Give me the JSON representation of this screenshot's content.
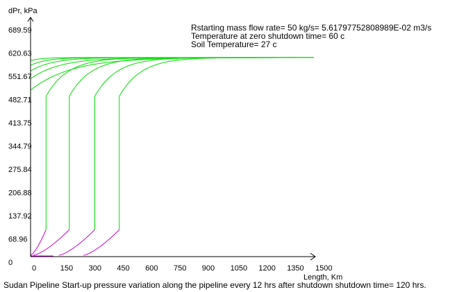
{
  "chart_data": {
    "type": "line",
    "title": "Sudan Pipeline Start-up pressure variation along the pipeline every 12 hrs after shutdown  shutdown time= 120 hrs.",
    "xlabel": "Length, Km",
    "ylabel": "dPr, kPa",
    "xlim": [
      0,
      1500
    ],
    "ylim": [
      0,
      689.59
    ],
    "x_ticks": [
      "0",
      "150",
      "300",
      "450",
      "600",
      "750",
      "900",
      "1050",
      "1200",
      "1350",
      "1500"
    ],
    "y_ticks": [
      "0",
      "68.96",
      "137.92",
      "206.88",
      "275.84",
      "344.79",
      "413.75",
      "482.71",
      "551.67",
      "620.63",
      "689.59"
    ],
    "annotations": [
      "Rstarting mass flow rate= 50 kg/s= 5.61797752808989E-02 m3/s",
      "Temperature at zero shutdown time= 60 c",
      "Soil Temperature= 27 c"
    ],
    "colors": {
      "upper_curves": "#00dd00",
      "lower_curves": "#cc00cc",
      "axes": "#000000"
    },
    "grid": false,
    "plateau": 591,
    "series": [
      {
        "front_km": 0,
        "front_kpa": 0,
        "start_kpa": 0,
        "curve_end_km": 1500
      },
      {
        "front_km": 0,
        "front_kpa": 0,
        "start_kpa": 582,
        "curve_end_km": 1500
      },
      {
        "front_km": 0,
        "front_kpa": 0,
        "start_kpa": 568,
        "curve_end_km": 1500
      },
      {
        "front_km": 0,
        "front_kpa": 0,
        "start_kpa": 551,
        "curve_end_km": 1500
      },
      {
        "front_km": 0,
        "front_kpa": 0,
        "start_kpa": 528,
        "curve_end_km": 1500
      },
      {
        "front_km": 0,
        "front_kpa": 0,
        "start_kpa": 494,
        "curve_end_km": 1500
      },
      {
        "front_km": 82,
        "front_kpa": 80,
        "start_kpa": 20,
        "curve_end_km": 1400
      },
      {
        "front_km": 205,
        "front_kpa": 80,
        "start_kpa": 20,
        "curve_end_km": 1400
      },
      {
        "front_km": 340,
        "front_kpa": 80,
        "start_kpa": 20,
        "curve_end_km": 1400
      },
      {
        "front_km": 470,
        "front_kpa": 80,
        "start_kpa": 20,
        "curve_end_km": 1400
      }
    ]
  }
}
